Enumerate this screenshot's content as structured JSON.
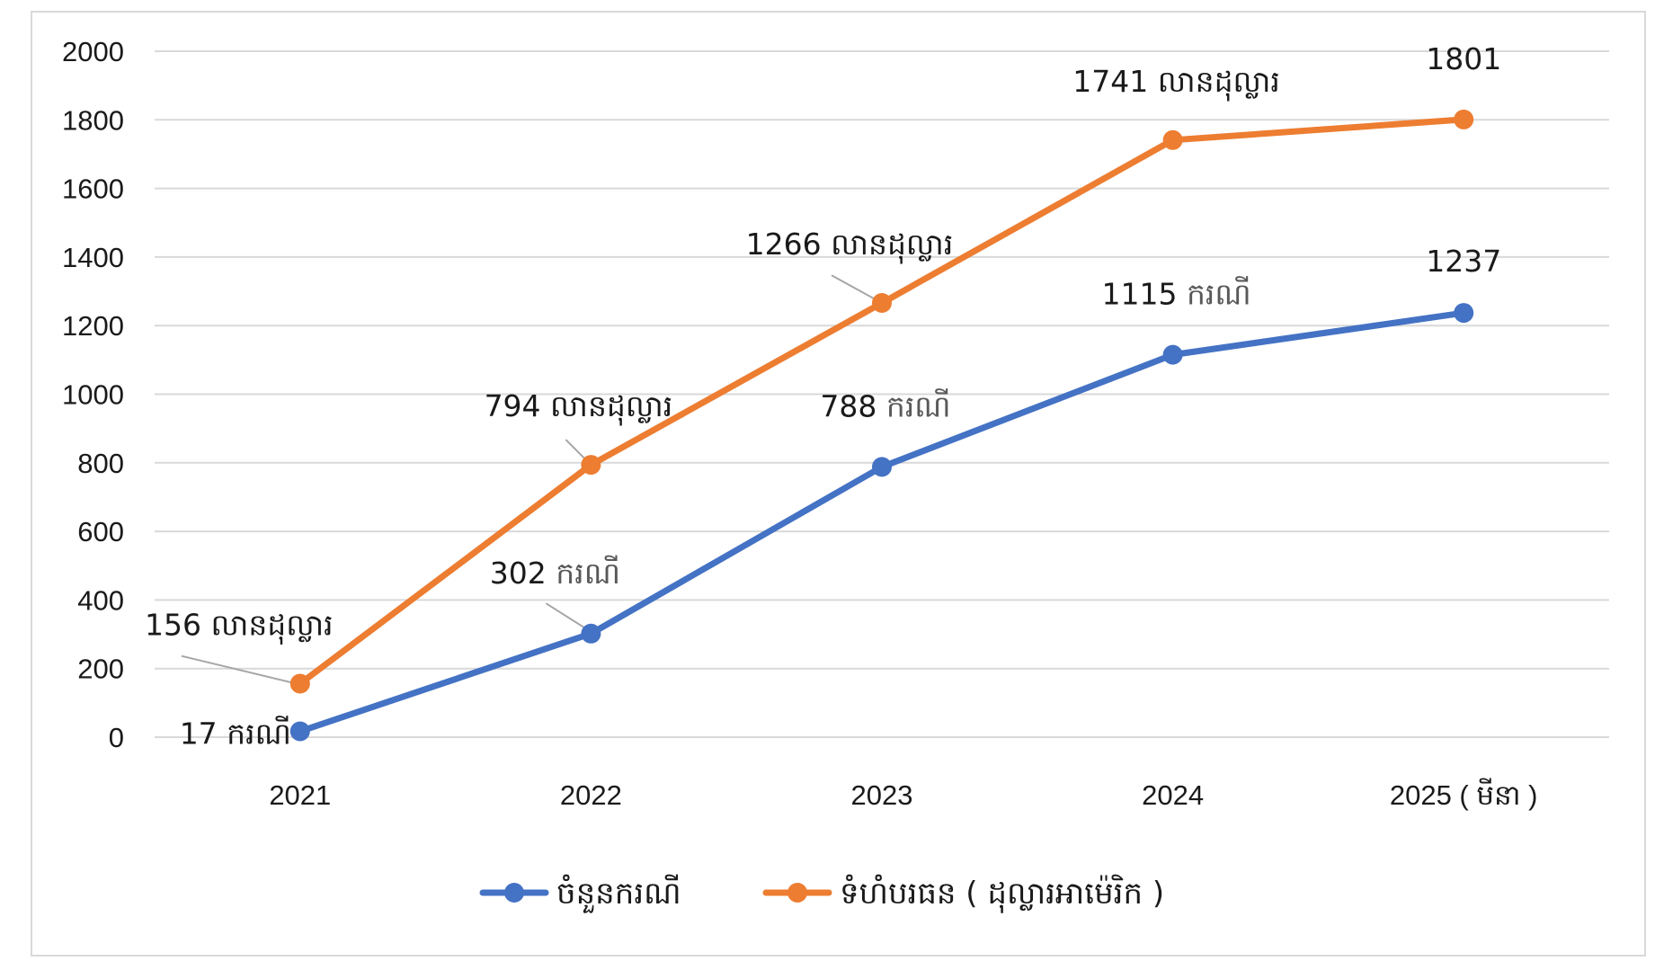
{
  "chart_data": {
    "type": "line",
    "categories": [
      "2021",
      "2022",
      "2023",
      "2024",
      "2025 ( មីនា )"
    ],
    "ylim": [
      0,
      2000
    ],
    "y_ticks": [
      "0",
      "200",
      "400",
      "600",
      "800",
      "1000",
      "1200",
      "1400",
      "1600",
      "1800",
      "2000"
    ],
    "grid": true,
    "legend_position": "bottom",
    "series": [
      {
        "name": "ចំនួនករណី",
        "color": "#4472c4",
        "values": [
          17,
          302,
          788,
          1115,
          1237
        ],
        "labels": [
          {
            "num": "17",
            "unit": "ករណី"
          },
          {
            "num": "302",
            "unit": "ករណី"
          },
          {
            "num": "788",
            "unit": "ករណី"
          },
          {
            "num": "1115",
            "unit": "ករណី"
          },
          {
            "num": "1237",
            "unit": ""
          }
        ]
      },
      {
        "name": "ទំហំបរធន ( ដុល្លារអាម៉េរិក )",
        "color": "#ed7d31",
        "values": [
          156,
          794,
          1266,
          1741,
          1801
        ],
        "labels": [
          {
            "num": "156",
            "unit": "លានដុល្លារ"
          },
          {
            "num": "794",
            "unit": "លានដុល្លារ"
          },
          {
            "num": "1266",
            "unit": "លានដុល្លារ"
          },
          {
            "num": "1741",
            "unit": "លានដុល្លារ"
          },
          {
            "num": "1801",
            "unit": ""
          }
        ]
      }
    ]
  }
}
